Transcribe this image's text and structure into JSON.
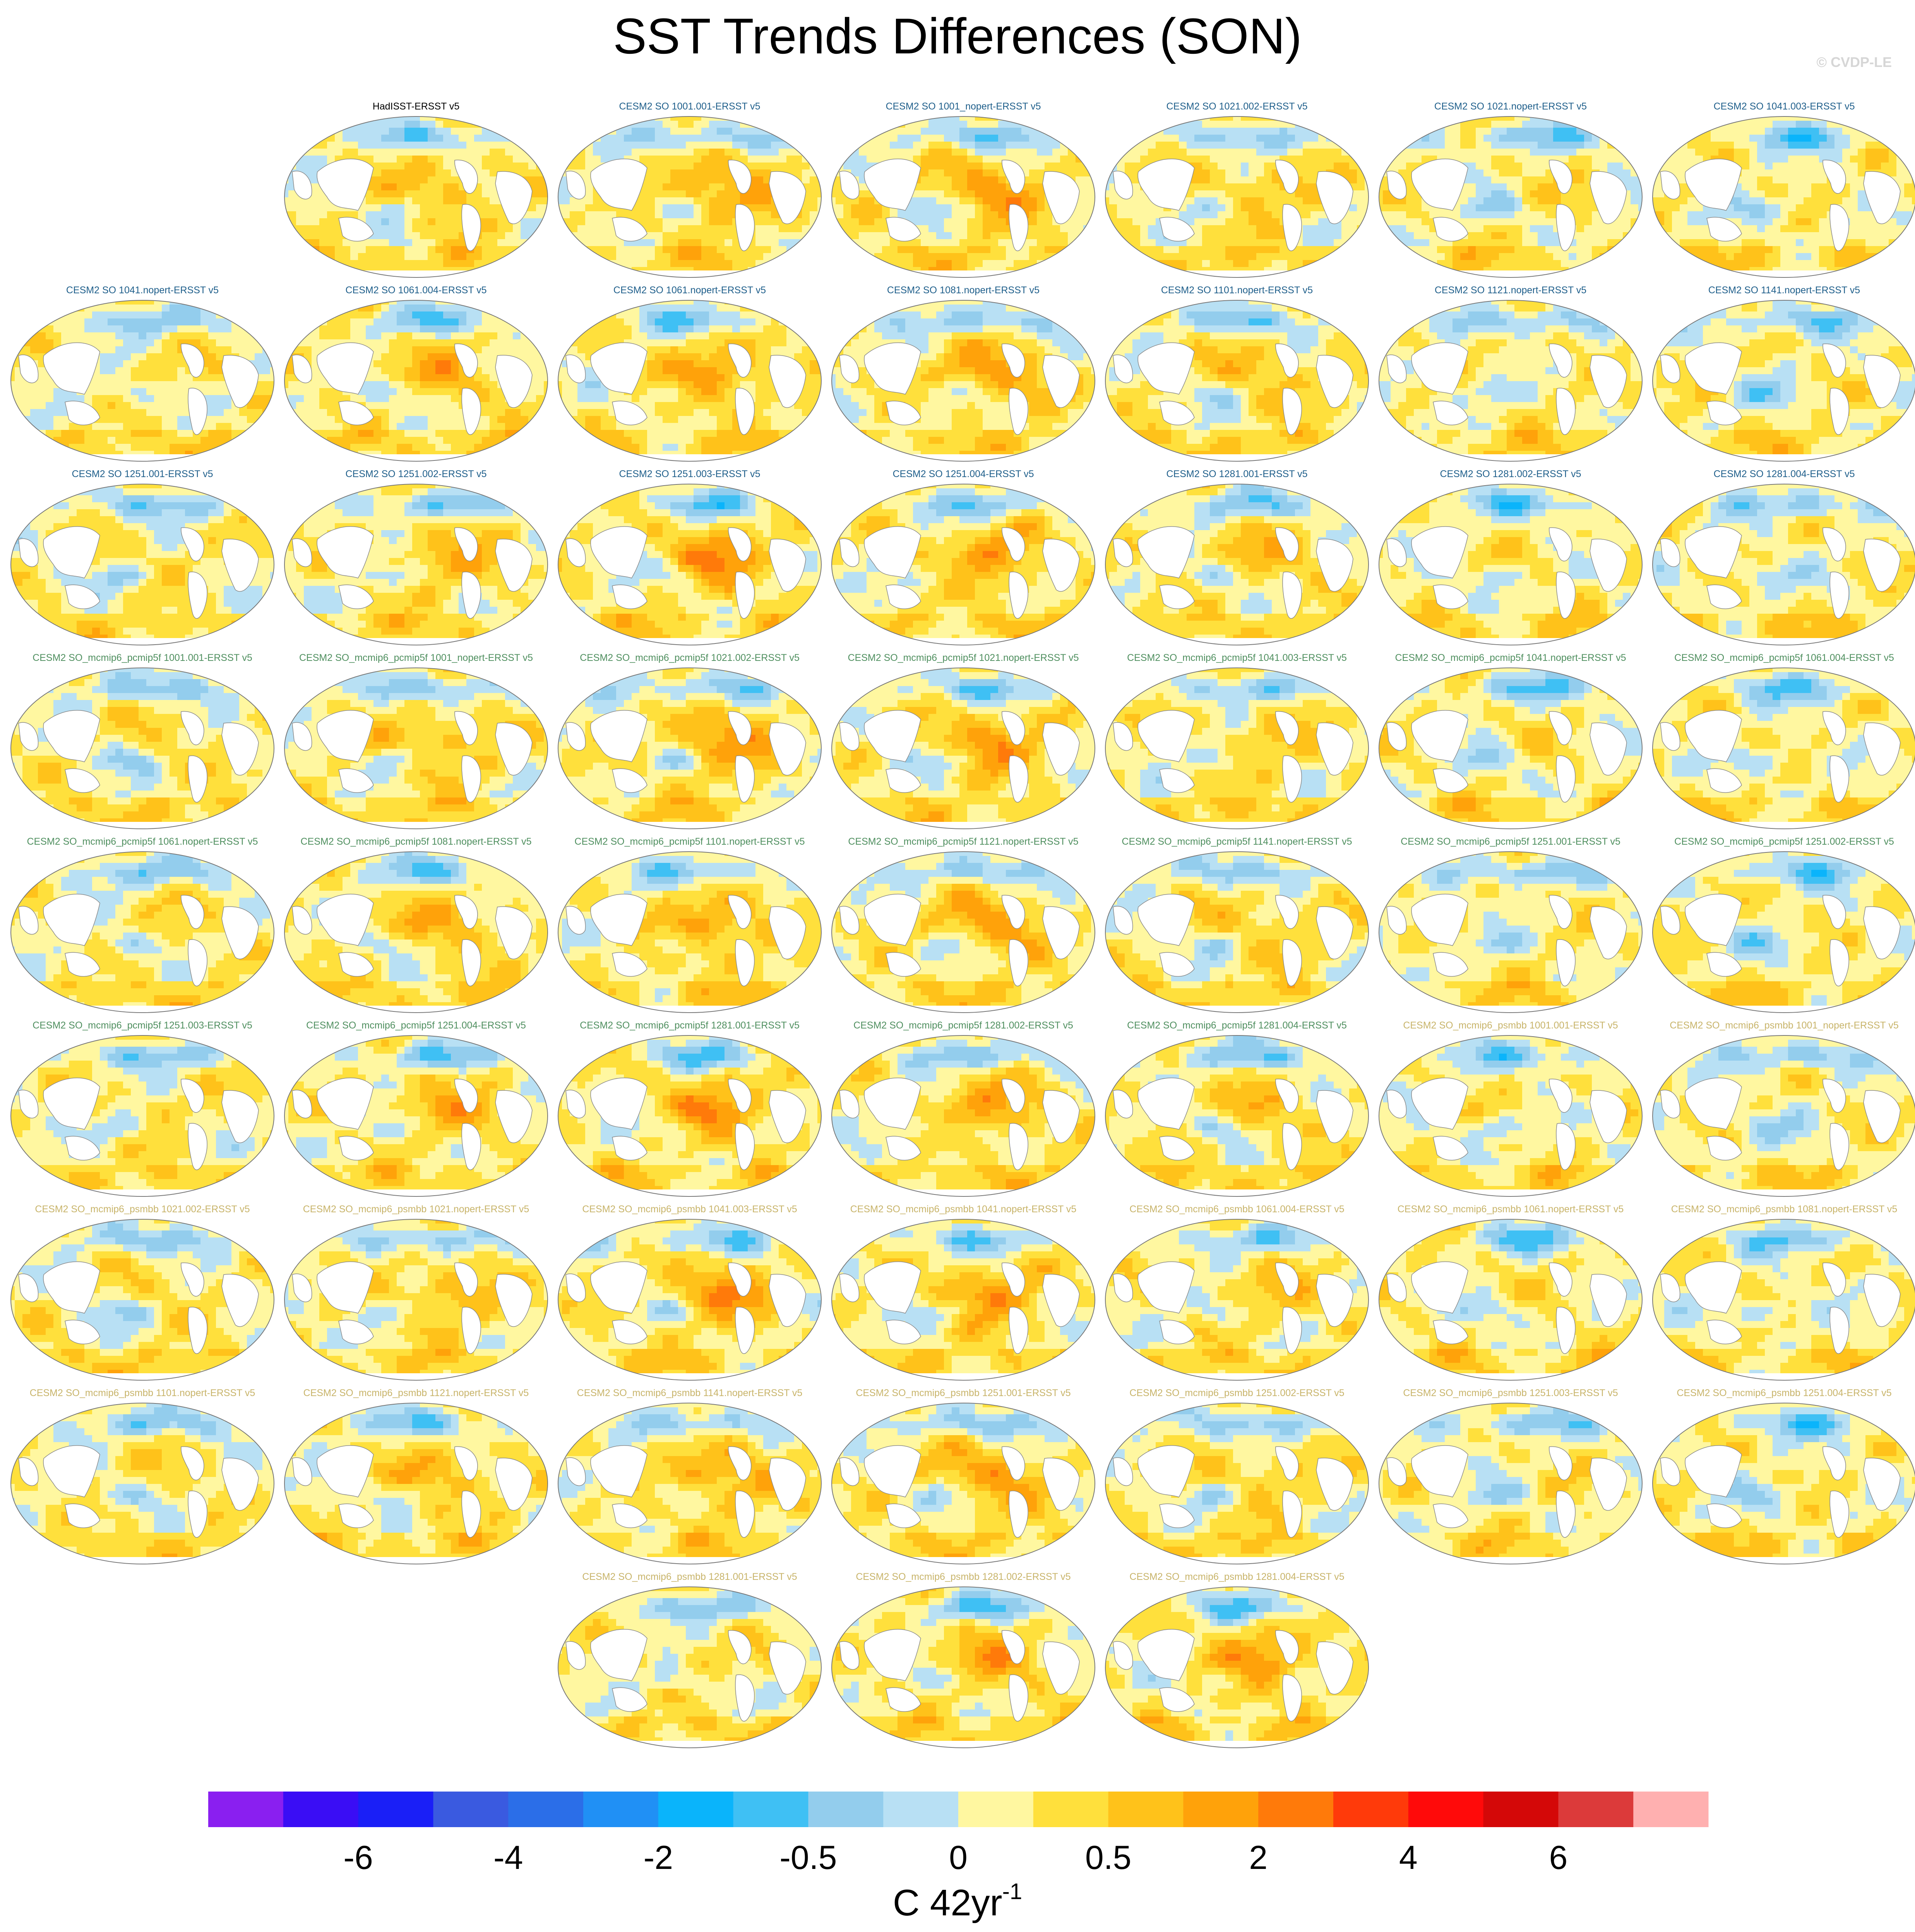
{
  "chart_data": {
    "type": "heatmap",
    "title": "SST Trends Differences (SON)",
    "credit": "© CVDP-LE",
    "map_projection": "Robinson, Pacific-centered global ocean",
    "panels": [
      {
        "title": "HadISST-ERSST v5",
        "group": "obs"
      },
      {
        "title": "CESM2 SO 1001.001-ERSST v5",
        "group": "SO"
      },
      {
        "title": "CESM2 SO 1001_nopert-ERSST v5",
        "group": "SO"
      },
      {
        "title": "CESM2 SO 1021.002-ERSST v5",
        "group": "SO"
      },
      {
        "title": "CESM2 SO 1021.nopert-ERSST v5",
        "group": "SO"
      },
      {
        "title": "CESM2 SO 1041.003-ERSST v5",
        "group": "SO"
      },
      {
        "title": "CESM2 SO 1041.nopert-ERSST v5",
        "group": "SO"
      },
      {
        "title": "CESM2 SO 1061.004-ERSST v5",
        "group": "SO"
      },
      {
        "title": "CESM2 SO 1061.nopert-ERSST v5",
        "group": "SO"
      },
      {
        "title": "CESM2 SO 1081.nopert-ERSST v5",
        "group": "SO"
      },
      {
        "title": "CESM2 SO 1101.nopert-ERSST v5",
        "group": "SO"
      },
      {
        "title": "CESM2 SO 1121.nopert-ERSST v5",
        "group": "SO"
      },
      {
        "title": "CESM2 SO 1141.nopert-ERSST v5",
        "group": "SO"
      },
      {
        "title": "CESM2 SO 1251.001-ERSST v5",
        "group": "SO"
      },
      {
        "title": "CESM2 SO 1251.002-ERSST v5",
        "group": "SO"
      },
      {
        "title": "CESM2 SO 1251.003-ERSST v5",
        "group": "SO"
      },
      {
        "title": "CESM2 SO 1251.004-ERSST v5",
        "group": "SO"
      },
      {
        "title": "CESM2 SO 1281.001-ERSST v5",
        "group": "SO"
      },
      {
        "title": "CESM2 SO 1281.002-ERSST v5",
        "group": "SO"
      },
      {
        "title": "CESM2 SO 1281.004-ERSST v5",
        "group": "SO"
      },
      {
        "title": "CESM2 SO_mcmip6_pcmip5f 1001.001-ERSST v5",
        "group": "pcmip5f"
      },
      {
        "title": "CESM2 SO_mcmip6_pcmip5f 1001_nopert-ERSST v5",
        "group": "pcmip5f"
      },
      {
        "title": "CESM2 SO_mcmip6_pcmip5f 1021.002-ERSST v5",
        "group": "pcmip5f"
      },
      {
        "title": "CESM2 SO_mcmip6_pcmip5f 1021.nopert-ERSST v5",
        "group": "pcmip5f"
      },
      {
        "title": "CESM2 SO_mcmip6_pcmip5f 1041.003-ERSST v5",
        "group": "pcmip5f"
      },
      {
        "title": "CESM2 SO_mcmip6_pcmip5f 1041.nopert-ERSST v5",
        "group": "pcmip5f"
      },
      {
        "title": "CESM2 SO_mcmip6_pcmip5f 1061.004-ERSST v5",
        "group": "pcmip5f"
      },
      {
        "title": "CESM2 SO_mcmip6_pcmip5f 1061.nopert-ERSST v5",
        "group": "pcmip5f"
      },
      {
        "title": "CESM2 SO_mcmip6_pcmip5f 1081.nopert-ERSST v5",
        "group": "pcmip5f"
      },
      {
        "title": "CESM2 SO_mcmip6_pcmip5f 1101.nopert-ERSST v5",
        "group": "pcmip5f"
      },
      {
        "title": "CESM2 SO_mcmip6_pcmip5f 1121.nopert-ERSST v5",
        "group": "pcmip5f"
      },
      {
        "title": "CESM2 SO_mcmip6_pcmip5f 1141.nopert-ERSST v5",
        "group": "pcmip5f"
      },
      {
        "title": "CESM2 SO_mcmip6_pcmip5f 1251.001-ERSST v5",
        "group": "pcmip5f"
      },
      {
        "title": "CESM2 SO_mcmip6_pcmip5f 1251.002-ERSST v5",
        "group": "pcmip5f"
      },
      {
        "title": "CESM2 SO_mcmip6_pcmip5f 1251.003-ERSST v5",
        "group": "pcmip5f"
      },
      {
        "title": "CESM2 SO_mcmip6_pcmip5f 1251.004-ERSST v5",
        "group": "pcmip5f"
      },
      {
        "title": "CESM2 SO_mcmip6_pcmip5f 1281.001-ERSST v5",
        "group": "pcmip5f"
      },
      {
        "title": "CESM2 SO_mcmip6_pcmip5f 1281.002-ERSST v5",
        "group": "pcmip5f"
      },
      {
        "title": "CESM2 SO_mcmip6_pcmip5f 1281.004-ERSST v5",
        "group": "pcmip5f"
      },
      {
        "title": "CESM2 SO_mcmip6_psmbb 1001.001-ERSST v5",
        "group": "psmbb"
      },
      {
        "title": "CESM2 SO_mcmip6_psmbb 1001_nopert-ERSST v5",
        "group": "psmbb"
      },
      {
        "title": "CESM2 SO_mcmip6_psmbb 1021.002-ERSST v5",
        "group": "psmbb"
      },
      {
        "title": "CESM2 SO_mcmip6_psmbb 1021.nopert-ERSST v5",
        "group": "psmbb"
      },
      {
        "title": "CESM2 SO_mcmip6_psmbb 1041.003-ERSST v5",
        "group": "psmbb"
      },
      {
        "title": "CESM2 SO_mcmip6_psmbb 1041.nopert-ERSST v5",
        "group": "psmbb"
      },
      {
        "title": "CESM2 SO_mcmip6_psmbb 1061.004-ERSST v5",
        "group": "psmbb"
      },
      {
        "title": "CESM2 SO_mcmip6_psmbb 1061.nopert-ERSST v5",
        "group": "psmbb"
      },
      {
        "title": "CESM2 SO_mcmip6_psmbb 1081.nopert-ERSST v5",
        "group": "psmbb"
      },
      {
        "title": "CESM2 SO_mcmip6_psmbb 1101.nopert-ERSST v5",
        "group": "psmbb"
      },
      {
        "title": "CESM2 SO_mcmip6_psmbb 1121.nopert-ERSST v5",
        "group": "psmbb"
      },
      {
        "title": "CESM2 SO_mcmip6_psmbb 1141.nopert-ERSST v5",
        "group": "psmbb"
      },
      {
        "title": "CESM2 SO_mcmip6_psmbb 1251.001-ERSST v5",
        "group": "psmbb"
      },
      {
        "title": "CESM2 SO_mcmip6_psmbb 1251.002-ERSST v5",
        "group": "psmbb"
      },
      {
        "title": "CESM2 SO_mcmip6_psmbb 1251.003-ERSST v5",
        "group": "psmbb"
      },
      {
        "title": "CESM2 SO_mcmip6_psmbb 1251.004-ERSST v5",
        "group": "psmbb"
      },
      {
        "title": "CESM2 SO_mcmip6_psmbb 1281.001-ERSST v5",
        "group": "psmbb"
      },
      {
        "title": "CESM2 SO_mcmip6_psmbb 1281.002-ERSST v5",
        "group": "psmbb"
      },
      {
        "title": "CESM2 SO_mcmip6_psmbb 1281.004-ERSST v5",
        "group": "psmbb"
      }
    ],
    "group_title_colors": {
      "obs": "#000000",
      "SO": "#1f5f8b",
      "pcmip5f": "#4f8f5f",
      "psmbb": "#c8b46a"
    },
    "colorbar": {
      "colors": [
        "#8a1ff0",
        "#3a0df5",
        "#1a1ff7",
        "#3a5ae0",
        "#2b6ee8",
        "#2090f5",
        "#0ab4fb",
        "#3fc0f4",
        "#93cded",
        "#b8e0f4",
        "#fff7a0",
        "#ffe03c",
        "#ffc21a",
        "#ffa20a",
        "#ff7a0a",
        "#ff3a0a",
        "#ff0a0a",
        "#d40808",
        "#dc3a3a",
        "#ffb0b0"
      ],
      "tick_labels": [
        "-6",
        "-4",
        "-2",
        "-0.5",
        "0",
        "0.5",
        "2",
        "4",
        "6"
      ],
      "tick_boundary_index": [
        2,
        4,
        6,
        8,
        10,
        12,
        14,
        16,
        18
      ],
      "unit": "C 42yr",
      "unit_superscript": "-1"
    }
  }
}
